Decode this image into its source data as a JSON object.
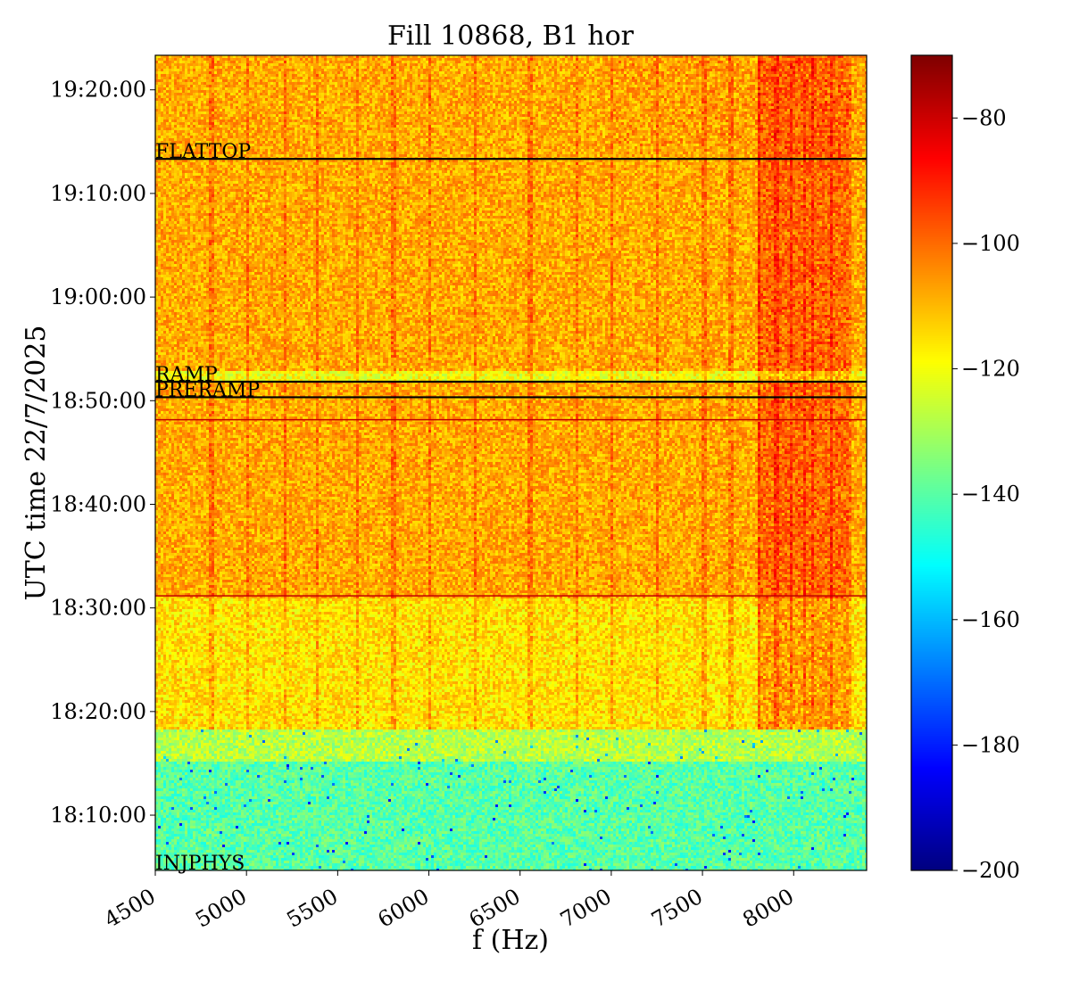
{
  "chart_data": {
    "type": "heatmap",
    "title": "Fill 10868, B1 hor",
    "xlabel": "f (Hz)",
    "ylabel": "UTC time 22/7/2025",
    "x_range": [
      4500,
      8400
    ],
    "x_ticks": [
      4500,
      5000,
      5500,
      6000,
      6500,
      7000,
      7500,
      8000
    ],
    "x_tick_labels": [
      "4500",
      "5000",
      "5500",
      "6000",
      "6500",
      "7000",
      "7500",
      "8000"
    ],
    "y_range": [
      "18:04:40",
      "19:23:20"
    ],
    "y_tick_labels": [
      "18:10:00",
      "18:20:00",
      "18:30:00",
      "18:40:00",
      "18:50:00",
      "19:00:00",
      "19:10:00",
      "19:20:00"
    ],
    "colormap": "jet",
    "colorbar": {
      "range": [
        -200,
        -70
      ],
      "ticks": [
        -200,
        -180,
        -160,
        -140,
        -120,
        -100,
        -80
      ],
      "tick_labels": [
        "−200",
        "−180",
        "−160",
        "−140",
        "−120",
        "−100",
        "−80"
      ]
    },
    "annotations": [
      {
        "label": "FLATTOP",
        "time": "19:13:20",
        "color": "#000000"
      },
      {
        "label": "RAMP",
        "time": "18:51:50",
        "color": "#000000"
      },
      {
        "label": "PRERAMP",
        "time": "18:50:20",
        "color": "#000000"
      },
      {
        "label": "INJPHYS",
        "time": "18:04:40",
        "color": "#000000"
      }
    ],
    "red_lines": [
      "18:48:10",
      "18:31:10"
    ],
    "regions": [
      {
        "from": "18:04:40",
        "to": "18:15:20",
        "level": -140
      },
      {
        "from": "18:15:20",
        "to": "18:18:30",
        "level": -128
      },
      {
        "from": "18:18:30",
        "to": "18:31:10",
        "level": -115
      },
      {
        "from": "18:31:10",
        "to": "18:52:00",
        "level": -108
      },
      {
        "from": "18:52:00",
        "to": "18:53:00",
        "level": -120
      },
      {
        "from": "18:53:00",
        "to": "19:23:20",
        "level": -108
      }
    ],
    "hot_band_hz": [
      7800,
      8300
    ],
    "spectral_lines_hz": [
      4800,
      5000,
      5200,
      5380,
      5600,
      5800,
      6000,
      6250,
      6550,
      6800,
      7000,
      7250,
      7500,
      7650,
      7800,
      7900,
      7980,
      8050,
      8100,
      8200,
      8300
    ]
  }
}
